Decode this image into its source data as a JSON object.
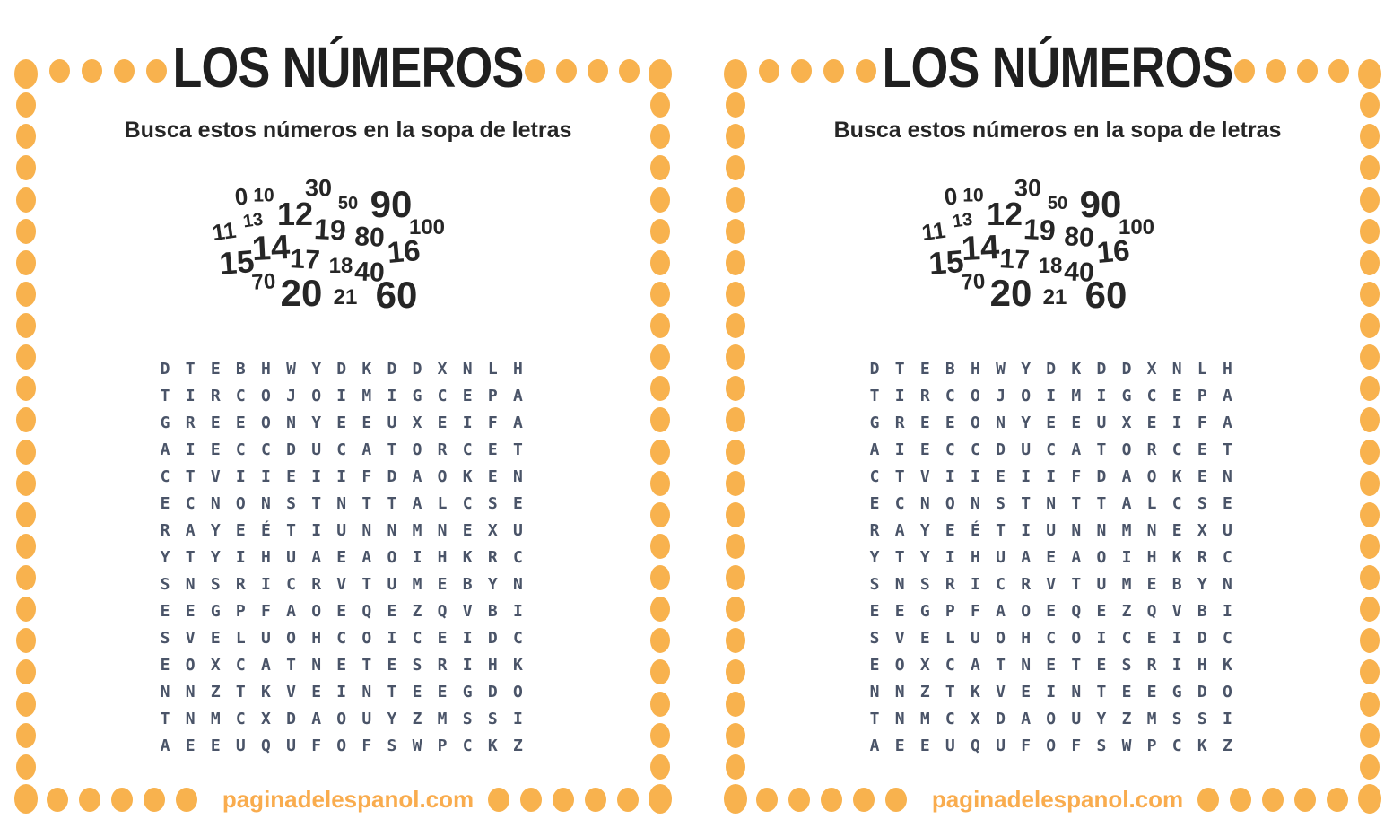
{
  "panel": {
    "title": "LOS NÚMEROS",
    "subtitle": "Busca estos números en la sopa de letras",
    "footer": "paginadelespanol.com",
    "numbers_to_find": [
      "0",
      "10",
      "30",
      "50",
      "90",
      "13",
      "12",
      "19",
      "11",
      "80",
      "100",
      "14",
      "15",
      "17",
      "18",
      "40",
      "16",
      "70",
      "20",
      "21",
      "60"
    ],
    "grid_rows": [
      "DTEBHWYDKDDXNLH",
      "TIRCOJOIMIGCEPA",
      "GREEONYEEUXEIFA",
      "AIECCDUCATORCET",
      "CTVIIEIIFDAOKEN",
      "ECNONSTNTTALCSE",
      "RAYEÉTIUNNMNEXU",
      "YTYIHUAEAOIHKRC",
      "SNSRICRVTUMEBYN",
      "EEGPFAOEQEZQVBI",
      "SVELUOHCOICEIDC",
      "EOXCATNETESRIHK",
      "NNZTKVEINTEEGDO",
      "TNMCXDAOUYZMSSI",
      "AEEUQUFOFSWPCKZ"
    ]
  },
  "panel_count": 2,
  "colors": {
    "dot_accent": "#F8B24E",
    "footer_accent": "#F9AC4E",
    "title_ink": "#1F1F1F",
    "grid_ink": "#4A5468",
    "cloud_ink": "#262626"
  }
}
